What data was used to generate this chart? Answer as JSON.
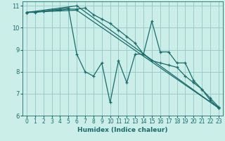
{
  "xlabel": "Humidex (Indice chaleur)",
  "ylabel": "",
  "bg_color": "#cceee8",
  "grid_color": "#99cccc",
  "line_color": "#1a6b6b",
  "xlim": [
    -0.5,
    23.5
  ],
  "ylim": [
    6,
    11.2
  ],
  "xticks": [
    0,
    1,
    2,
    3,
    4,
    5,
    6,
    7,
    8,
    9,
    10,
    11,
    12,
    13,
    14,
    15,
    16,
    17,
    18,
    19,
    20,
    21,
    22,
    23
  ],
  "yticks": [
    6,
    7,
    8,
    9,
    10,
    11
  ],
  "lines": [
    {
      "x": [
        0,
        1,
        2,
        3,
        4,
        5,
        6,
        7,
        8,
        9,
        10,
        11,
        12,
        13,
        14,
        15,
        16,
        17,
        18,
        19,
        20,
        21,
        22,
        23
      ],
      "y": [
        10.7,
        10.7,
        10.75,
        10.8,
        10.8,
        10.85,
        10.85,
        10.9,
        10.6,
        10.4,
        10.2,
        9.9,
        9.6,
        9.3,
        8.8,
        8.5,
        8.4,
        8.3,
        8.2,
        7.8,
        7.5,
        7.2,
        6.8,
        6.4
      ]
    },
    {
      "x": [
        0,
        2,
        3,
        4,
        5,
        6,
        7,
        8,
        9,
        10,
        11,
        12,
        13,
        14,
        15,
        16,
        17,
        18,
        19,
        20,
        21,
        22,
        23
      ],
      "y": [
        10.7,
        10.75,
        10.8,
        10.85,
        10.9,
        8.8,
        8.0,
        7.8,
        8.4,
        6.6,
        8.5,
        7.5,
        8.8,
        8.8,
        10.3,
        8.9,
        8.9,
        8.4,
        8.4,
        7.6,
        7.2,
        6.7,
        6.35
      ]
    },
    {
      "x": [
        0,
        6,
        23
      ],
      "y": [
        10.7,
        11.0,
        6.35
      ]
    },
    {
      "x": [
        0,
        6,
        23
      ],
      "y": [
        10.7,
        10.8,
        6.35
      ]
    }
  ]
}
